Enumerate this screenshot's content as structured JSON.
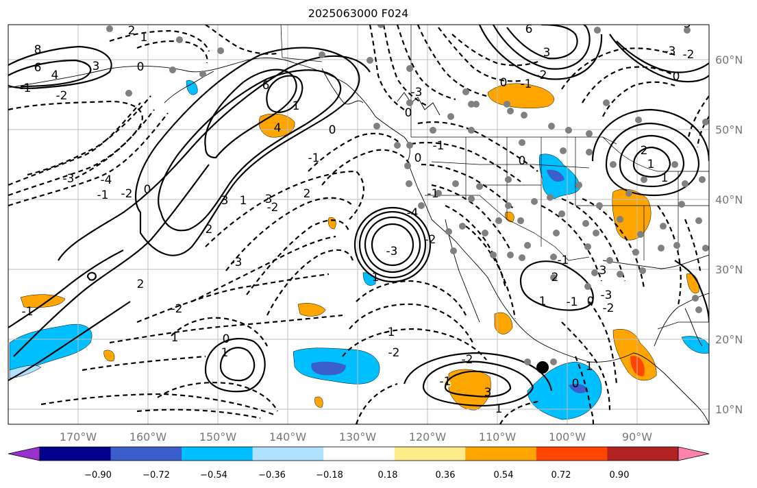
{
  "title": "2025063000 F024",
  "longitude_labels": [
    "170°W",
    "160°W",
    "150°W",
    "140°W",
    "130°W",
    "120°W",
    "110°W",
    "100°W",
    "90°W"
  ],
  "latitude_labels": [
    "60°N",
    "50°N",
    "40°N",
    "30°N",
    "20°N",
    "10°N"
  ],
  "colorbar": {
    "tick_labels": [
      "−0.90",
      "−0.72",
      "−0.54",
      "−0.36",
      "−0.18",
      "0.18",
      "0.36",
      "0.54",
      "0.72",
      "0.90"
    ],
    "colors": [
      "#9932cc",
      "#00008b",
      "#3a5fcd",
      "#00bfff",
      "#b0e2ff",
      "#ffffff",
      "#ffec8b",
      "#ffa500",
      "#ff4500",
      "#b22222",
      "#ff82ab"
    ]
  },
  "contour_labels": [
    "8",
    "6",
    "4",
    "3",
    "2",
    "1",
    "0",
    "-1",
    "-2",
    "-3",
    "-4",
    "6",
    "4",
    "3",
    "2",
    "1",
    "0",
    "-1",
    "-2",
    "-3",
    "3",
    "2",
    "1",
    "0",
    "-1",
    "-2",
    "-4",
    "-3",
    "-2",
    "-1",
    "0",
    "1",
    "-3",
    "-1",
    "0",
    "1",
    "-1",
    "-2",
    "2",
    "1",
    "0",
    "-1",
    "-2",
    "3",
    "1",
    "-1",
    "-2",
    "-1",
    "0",
    "1",
    "2",
    "3",
    "-3",
    "-2",
    "-1",
    "0",
    "1",
    "0",
    "-3",
    "-2",
    "6",
    "3",
    "-2",
    "-1",
    "0",
    "1",
    "2",
    "3",
    "0",
    "1"
  ]
}
